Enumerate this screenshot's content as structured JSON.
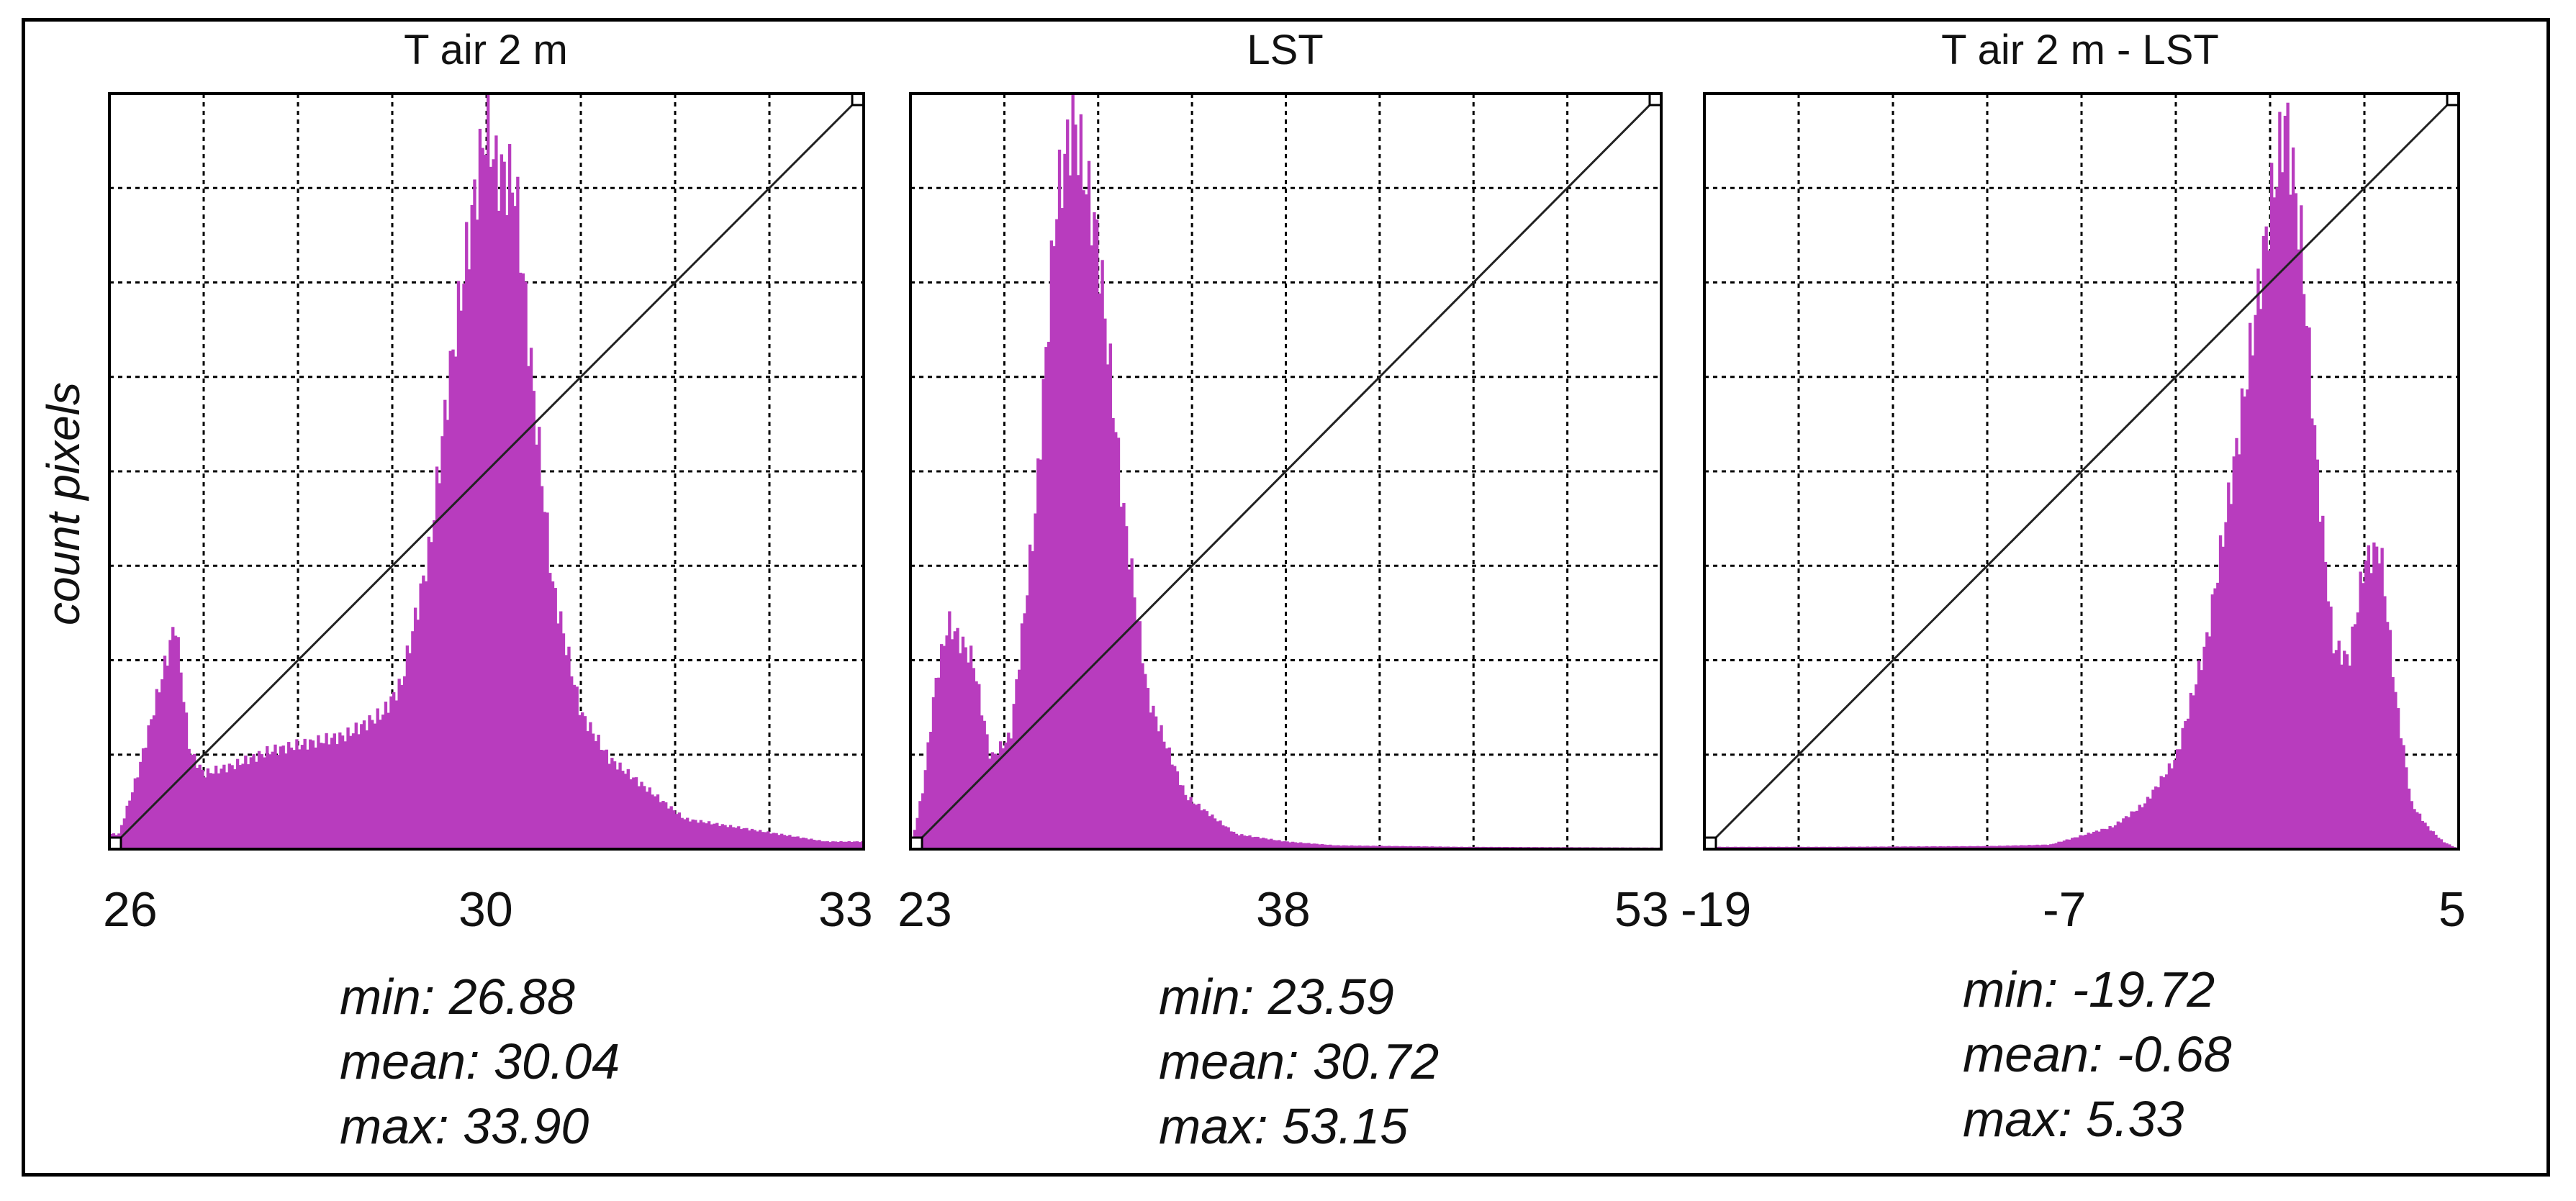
{
  "ylabel": "count pixels",
  "colors": {
    "bars": "#b83cbe",
    "grid": "#000000",
    "diagonal": "#222222"
  },
  "panels": [
    {
      "title": "T air 2 m",
      "ticks": [
        "26",
        "30",
        "33"
      ],
      "stats": {
        "min": "min: 26.88",
        "mean": "mean: 30.04",
        "max": "max: 33.90"
      }
    },
    {
      "title": "LST",
      "ticks": [
        "23",
        "38",
        "53"
      ],
      "stats": {
        "min": "min: 23.59",
        "mean": "mean: 30.72",
        "max": "max: 53.15"
      }
    },
    {
      "title": "T air 2 m - LST",
      "ticks": [
        "-19",
        "-7",
        "5"
      ],
      "stats": {
        "min": "min: -19.72",
        "mean": "mean: -0.68",
        "max": "max: 5.33"
      }
    }
  ],
  "chart_data": [
    {
      "type": "area",
      "title": "T air 2 m",
      "xlabel": "",
      "ylabel": "count pixels",
      "xlim": [
        25.9,
        33.9
      ],
      "grid": true,
      "x": [
        26.0,
        26.2,
        26.4,
        26.6,
        26.75,
        26.9,
        27.2,
        27.6,
        28.0,
        28.4,
        28.8,
        29.0,
        29.1,
        29.3,
        29.5,
        29.7,
        29.9,
        30.0,
        30.2,
        30.4,
        30.6,
        30.9,
        31.2,
        31.6,
        32.0,
        32.5,
        33.0,
        33.5,
        33.9
      ],
      "values": [
        0.02,
        0.1,
        0.2,
        0.3,
        0.13,
        0.1,
        0.11,
        0.13,
        0.14,
        0.15,
        0.18,
        0.22,
        0.28,
        0.4,
        0.62,
        0.8,
        0.97,
        0.9,
        0.88,
        0.6,
        0.35,
        0.18,
        0.12,
        0.08,
        0.04,
        0.03,
        0.02,
        0.01,
        0.01
      ]
    },
    {
      "type": "area",
      "title": "LST",
      "xlabel": "",
      "ylabel": "count pixels",
      "xlim": [
        23.0,
        53.0
      ],
      "grid": true,
      "x": [
        23.0,
        23.5,
        24.0,
        24.5,
        25.5,
        26.2,
        27.0,
        28.0,
        28.8,
        29.5,
        30.5,
        31.5,
        32.5,
        34.0,
        36.0,
        38.0,
        40.0,
        45.0,
        53.0
      ],
      "values": [
        0.0,
        0.08,
        0.22,
        0.3,
        0.25,
        0.12,
        0.15,
        0.45,
        0.85,
        0.97,
        0.8,
        0.45,
        0.2,
        0.07,
        0.02,
        0.01,
        0.005,
        0.003,
        0.002
      ]
    },
    {
      "type": "area",
      "title": "T air 2 m - LST",
      "xlabel": "",
      "ylabel": "count pixels",
      "xlim": [
        -19.0,
        5.0
      ],
      "grid": true,
      "x": [
        -19.0,
        -15.0,
        -10.0,
        -8.0,
        -6.0,
        -5.0,
        -4.0,
        -3.0,
        -2.0,
        -1.0,
        -0.5,
        0.0,
        0.5,
        1.0,
        1.5,
        2.0,
        2.5,
        3.0,
        3.5,
        4.0,
        4.5,
        5.0
      ],
      "values": [
        0.003,
        0.003,
        0.004,
        0.006,
        0.03,
        0.06,
        0.12,
        0.28,
        0.55,
        0.85,
        0.97,
        0.8,
        0.5,
        0.27,
        0.25,
        0.38,
        0.4,
        0.2,
        0.06,
        0.03,
        0.01,
        0.0
      ]
    }
  ]
}
